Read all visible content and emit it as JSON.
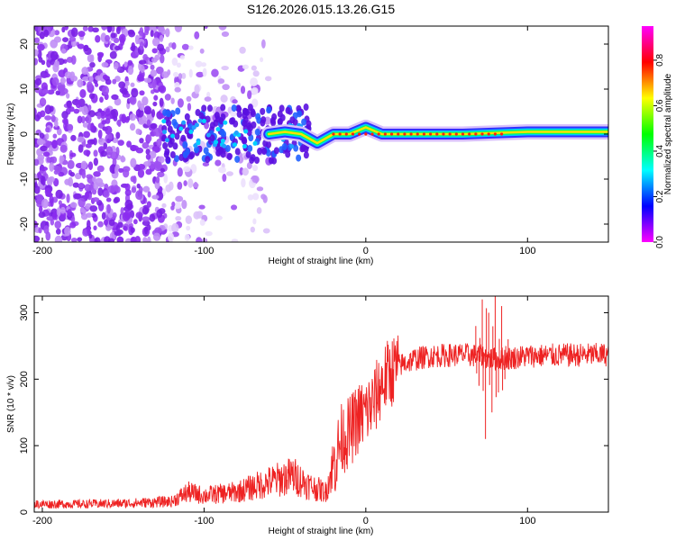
{
  "title": "S126.2026.015.13.26.G15",
  "colors": {
    "series": "#ee2222",
    "plot_bg": "#ffffff",
    "axis": "#000000",
    "colormap": [
      "#ff00ff",
      "#0000ff",
      "#00ffff",
      "#00ff00",
      "#ffff00",
      "#ff0000",
      "#ff00ff"
    ]
  },
  "chart_data": [
    {
      "type": "heatmap",
      "name": "spectrogram",
      "xlabel": "Height of straight line (km)",
      "ylabel": "Frequency (Hz)",
      "xlim": [
        -205,
        150
      ],
      "ylim": [
        -24,
        24
      ],
      "x_ticks": [
        -200,
        -100,
        0,
        100
      ],
      "x_tick_labels": [
        "-200",
        "-100",
        "0",
        "100"
      ],
      "y_ticks": [
        -20,
        -10,
        0,
        10,
        20
      ],
      "y_tick_labels": [
        "-20",
        "-10",
        "0",
        "10",
        "20"
      ],
      "colorbar": {
        "label": "Normalized spectral amplitude",
        "range": [
          0,
          0.95
        ],
        "ticks": [
          0,
          0.2,
          0.4,
          0.6,
          0.8
        ],
        "tick_labels": [
          "0.0",
          "0.2",
          "0.4",
          "0.6",
          "0.8"
        ]
      },
      "signal_trace": {
        "x": [
          -60,
          -50,
          -40,
          -35,
          -30,
          -25,
          -20,
          -10,
          0,
          10,
          30,
          60,
          100,
          150
        ],
        "y": [
          0,
          0.5,
          0,
          -1,
          -2,
          -1,
          0,
          0,
          1.5,
          0,
          0,
          0,
          0.5,
          0.5
        ]
      },
      "noise_region": {
        "x_range": [
          -205,
          -60
        ],
        "y_range": [
          -24,
          24
        ]
      }
    },
    {
      "type": "line",
      "name": "snr",
      "xlabel": "Height of straight line (km)",
      "ylabel": "SNR (10 * v/v)",
      "xlim": [
        -205,
        150
      ],
      "ylim": [
        0,
        325
      ],
      "x_ticks": [
        -200,
        -100,
        0,
        100
      ],
      "x_tick_labels": [
        "-200",
        "-100",
        "0",
        "100"
      ],
      "y_ticks": [
        0,
        100,
        200,
        300
      ],
      "y_tick_labels": [
        "0",
        "100",
        "200",
        "300"
      ],
      "series": [
        {
          "name": "SNR",
          "x": [
            -205,
            -180,
            -150,
            -120,
            -110,
            -100,
            -80,
            -60,
            -45,
            -35,
            -25,
            -20,
            -15,
            -10,
            -5,
            0,
            5,
            10,
            15,
            20,
            25,
            30,
            40,
            50,
            60,
            70,
            80,
            90,
            100,
            120,
            150
          ],
          "y": [
            12,
            12,
            13,
            16,
            30,
            25,
            30,
            45,
            55,
            40,
            30,
            70,
            110,
            120,
            140,
            150,
            165,
            195,
            210,
            220,
            225,
            230,
            235,
            236,
            237,
            235,
            230,
            232,
            235,
            236,
            237
          ]
        }
      ],
      "spikes": {
        "x": [
          68,
          70,
          72,
          74,
          76,
          78,
          80,
          82,
          84,
          86,
          88,
          90
        ],
        "y": [
          280,
          190,
          320,
          110,
          300,
          150,
          325,
          180,
          310,
          200,
          260,
          220
        ]
      }
    }
  ]
}
